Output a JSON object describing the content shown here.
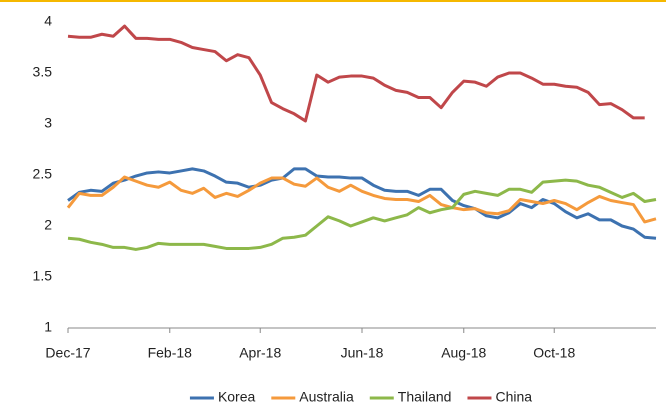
{
  "chart_data": {
    "type": "line",
    "categories": [
      "Dec-17",
      null,
      null,
      null,
      null,
      null,
      null,
      null,
      null,
      "Feb-18",
      null,
      null,
      null,
      null,
      null,
      null,
      null,
      "Apr-18",
      null,
      null,
      null,
      null,
      null,
      null,
      null,
      null,
      "Jun-18",
      null,
      null,
      null,
      null,
      null,
      null,
      null,
      null,
      "Aug-18",
      null,
      null,
      null,
      null,
      null,
      null,
      null,
      "Oct-18",
      null,
      null,
      null,
      null,
      null,
      null,
      null,
      null,
      null
    ],
    "series": [
      {
        "name": "Korea",
        "color": "#3d72b0",
        "values": [
          2.25,
          2.33,
          2.35,
          2.34,
          2.42,
          2.45,
          2.49,
          2.52,
          2.53,
          2.52,
          2.54,
          2.56,
          2.54,
          2.49,
          2.43,
          2.42,
          2.38,
          2.4,
          2.45,
          2.47,
          2.56,
          2.56,
          2.49,
          2.48,
          2.48,
          2.47,
          2.47,
          2.4,
          2.35,
          2.34,
          2.34,
          2.3,
          2.36,
          2.36,
          2.25,
          2.2,
          2.17,
          2.1,
          2.08,
          2.13,
          2.22,
          2.18,
          2.26,
          2.22,
          2.14,
          2.08,
          2.12,
          2.06,
          2.06,
          2.0,
          1.97,
          1.89,
          1.88
        ]
      },
      {
        "name": "Australia",
        "color": "#f59a3c",
        "values": [
          2.18,
          2.32,
          2.3,
          2.3,
          2.38,
          2.48,
          2.44,
          2.4,
          2.38,
          2.43,
          2.35,
          2.32,
          2.37,
          2.28,
          2.32,
          2.29,
          2.35,
          2.42,
          2.47,
          2.47,
          2.41,
          2.39,
          2.47,
          2.38,
          2.34,
          2.4,
          2.34,
          2.3,
          2.27,
          2.26,
          2.26,
          2.24,
          2.3,
          2.21,
          2.18,
          2.16,
          2.17,
          2.13,
          2.12,
          2.15,
          2.26,
          2.24,
          2.22,
          2.25,
          2.22,
          2.16,
          2.23,
          2.29,
          2.25,
          2.23,
          2.21,
          2.04,
          2.07
        ]
      },
      {
        "name": "Thailand",
        "color": "#8db84a",
        "values": [
          1.88,
          1.87,
          1.84,
          1.82,
          1.79,
          1.79,
          1.77,
          1.79,
          1.83,
          1.82,
          1.82,
          1.82,
          1.82,
          1.8,
          1.78,
          1.78,
          1.78,
          1.79,
          1.82,
          1.88,
          1.89,
          1.91,
          2.0,
          2.09,
          2.05,
          2.0,
          2.04,
          2.08,
          2.05,
          2.08,
          2.11,
          2.18,
          2.13,
          2.16,
          2.18,
          2.31,
          2.34,
          2.32,
          2.3,
          2.36,
          2.36,
          2.33,
          2.43,
          2.44,
          2.45,
          2.44,
          2.4,
          2.38,
          2.33,
          2.28,
          2.32,
          2.24,
          2.26
        ]
      },
      {
        "name": "China",
        "color": "#c0474a",
        "values": [
          3.86,
          3.85,
          3.85,
          3.88,
          3.86,
          3.96,
          3.84,
          3.84,
          3.83,
          3.83,
          3.8,
          3.75,
          3.73,
          3.71,
          3.62,
          3.68,
          3.65,
          3.48,
          3.21,
          3.15,
          3.1,
          3.03,
          3.48,
          3.41,
          3.46,
          3.47,
          3.47,
          3.45,
          3.38,
          3.33,
          3.31,
          3.26,
          3.26,
          3.16,
          3.31,
          3.42,
          3.41,
          3.37,
          3.46,
          3.5,
          3.5,
          3.45,
          3.39,
          3.39,
          3.37,
          3.36,
          3.31,
          3.19,
          3.2,
          3.14,
          3.06,
          3.06,
          null
        ]
      }
    ],
    "ylim": [
      1,
      4
    ],
    "yticks": [
      1,
      1.5,
      2,
      2.5,
      3,
      3.5,
      4
    ],
    "grid": false,
    "legend": "bottom"
  }
}
